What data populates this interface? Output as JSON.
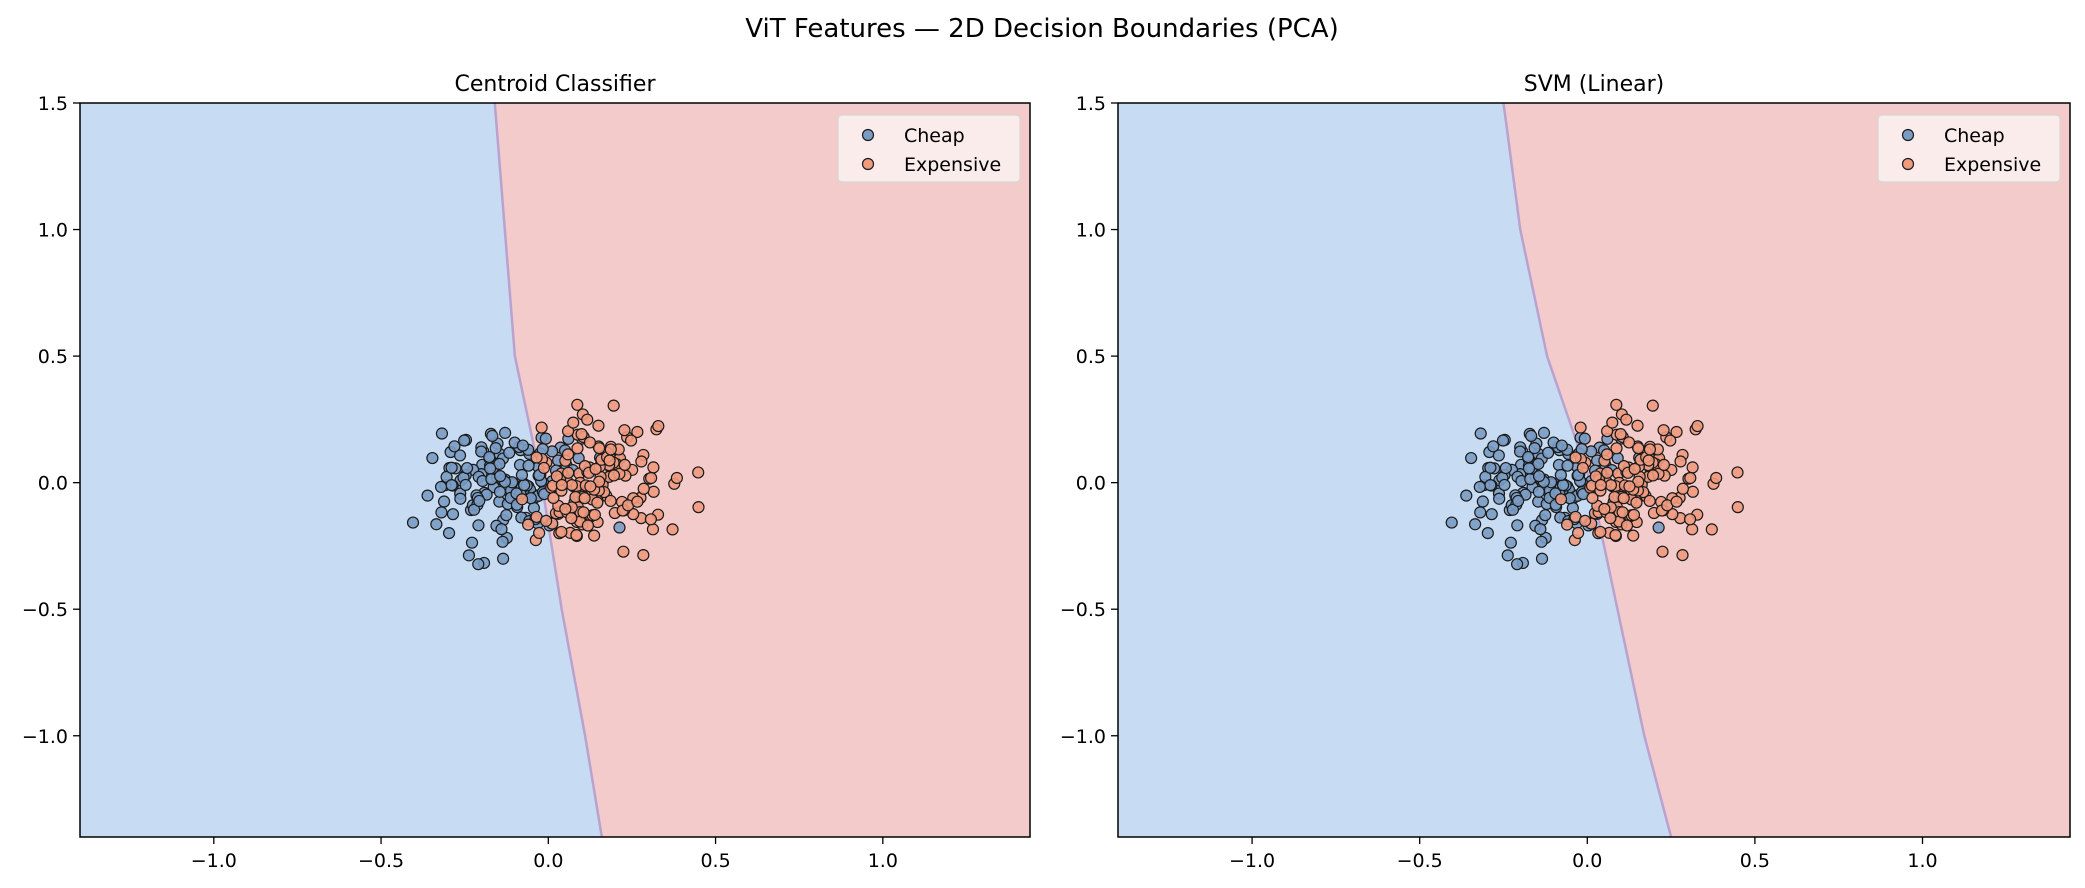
{
  "figure": {
    "title": "ViT Features — 2D Decision Boundaries (PCA)"
  },
  "colors": {
    "region_cheap": "#c7dcf3",
    "region_expensive": "#f3cbcb",
    "boundary_line": "#b9a2cf",
    "point_cheap": "#7a9cc4",
    "point_expensive": "#f09a7e",
    "point_edge": "#1a1a1a",
    "legend_bg": "#fbf2f2"
  },
  "chart_data": [
    {
      "type": "scatter",
      "title": "Centroid Classifier",
      "xlim": [
        -1.4,
        1.44
      ],
      "ylim": [
        -1.4,
        1.5
      ],
      "xticks": [
        -1.0,
        -0.5,
        0.0,
        0.5,
        1.0
      ],
      "yticks": [
        1.5,
        1.0,
        0.5,
        0.0,
        -0.5,
        -1.0
      ],
      "xtick_labels": [
        "−1.0",
        "−0.5",
        "0.0",
        "0.5",
        "1.0"
      ],
      "ytick_labels": [
        "1.5",
        "1.0",
        "0.5",
        "0.0",
        "−0.5",
        "−1.0"
      ],
      "grid": false,
      "legend": {
        "position": "top-right",
        "entries": [
          "Cheap",
          "Expensive"
        ]
      },
      "regions": {
        "left": "Cheap",
        "right": "Expensive"
      },
      "boundary": [
        [
          -0.16,
          1.5
        ],
        [
          -0.13,
          1.0
        ],
        [
          -0.1,
          0.5
        ],
        [
          -0.02,
          0.0
        ],
        [
          0.04,
          -0.5
        ],
        [
          0.11,
          -1.0
        ],
        [
          0.16,
          -1.4
        ]
      ],
      "seed": 7
    },
    {
      "type": "scatter",
      "title": "SVM (Linear)",
      "xlim": [
        -1.4,
        1.44
      ],
      "ylim": [
        -1.4,
        1.5
      ],
      "xticks": [
        -1.0,
        -0.5,
        0.0,
        0.5,
        1.0
      ],
      "yticks": [
        1.5,
        1.0,
        0.5,
        0.0,
        -0.5,
        -1.0
      ],
      "xtick_labels": [
        "−1.0",
        "−0.5",
        "0.0",
        "0.5",
        "1.0"
      ],
      "ytick_labels": [
        "1.5",
        "1.0",
        "0.5",
        "0.0",
        "−0.5",
        "−1.0"
      ],
      "grid": false,
      "legend": {
        "position": "top-right",
        "entries": [
          "Cheap",
          "Expensive"
        ]
      },
      "regions": {
        "left": "Cheap",
        "right": "Expensive"
      },
      "boundary": [
        [
          -0.25,
          1.5
        ],
        [
          -0.2,
          1.0
        ],
        [
          -0.12,
          0.5
        ],
        [
          0.01,
          0.0
        ],
        [
          0.09,
          -0.5
        ],
        [
          0.17,
          -1.0
        ],
        [
          0.25,
          -1.4
        ]
      ],
      "seed": 7
    }
  ]
}
